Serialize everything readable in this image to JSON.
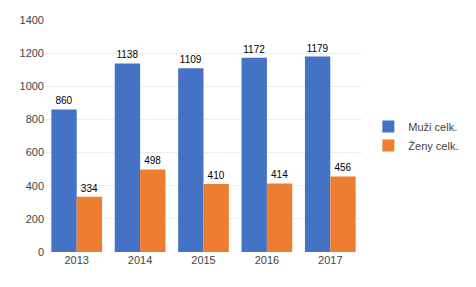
{
  "chart_data": {
    "type": "bar",
    "categories": [
      "2013",
      "2014",
      "2015",
      "2016",
      "2017"
    ],
    "series": [
      {
        "name": "Muži celk.",
        "color": "#4472C4",
        "values": [
          860,
          1138,
          1109,
          1172,
          1179
        ]
      },
      {
        "name": "Ženy celk.",
        "color": "#ED7D31",
        "values": [
          334,
          498,
          410,
          414,
          456
        ]
      }
    ],
    "ylim": [
      0,
      1400
    ],
    "yticks": [
      0,
      200,
      400,
      600,
      800,
      1000,
      1200,
      1400
    ],
    "grid": true,
    "legend": "right",
    "data_labels": true
  }
}
